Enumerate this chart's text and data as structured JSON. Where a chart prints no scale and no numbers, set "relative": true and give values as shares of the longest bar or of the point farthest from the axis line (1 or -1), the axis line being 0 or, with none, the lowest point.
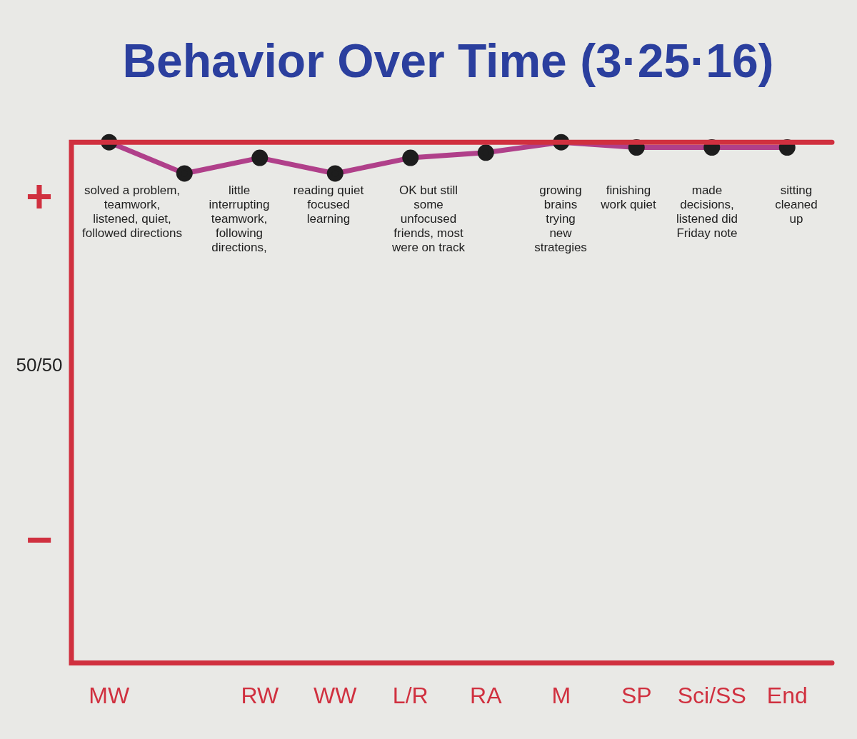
{
  "chart_data": {
    "type": "line",
    "title": "Behavior Over Time (3·25·16)",
    "categories": [
      "MW",
      null,
      "RW",
      "WW",
      "L/R",
      "RA",
      "M",
      "SP",
      "Sci/SS",
      "End"
    ],
    "relative": true,
    "series": [
      {
        "color": "#b0408a",
        "values": [
          1,
          0.94,
          0.97,
          0.94,
          0.97,
          0.98,
          1,
          0.99,
          0.99,
          0.99
        ]
      }
    ],
    "marker": "circle",
    "annotations": [
      "+",
      "50/50",
      "−",
      "solved a problem, teamwork, listened, quiet, followed directions",
      "little interrupting teamwork, following directions,",
      "reading quiet focused learning",
      "OK but still some unfocused friends, most were on track",
      "growing brains trying new strategies",
      "finishing work quiet",
      "made decisions, listened did Friday note",
      "sitting cleaned up"
    ]
  }
}
